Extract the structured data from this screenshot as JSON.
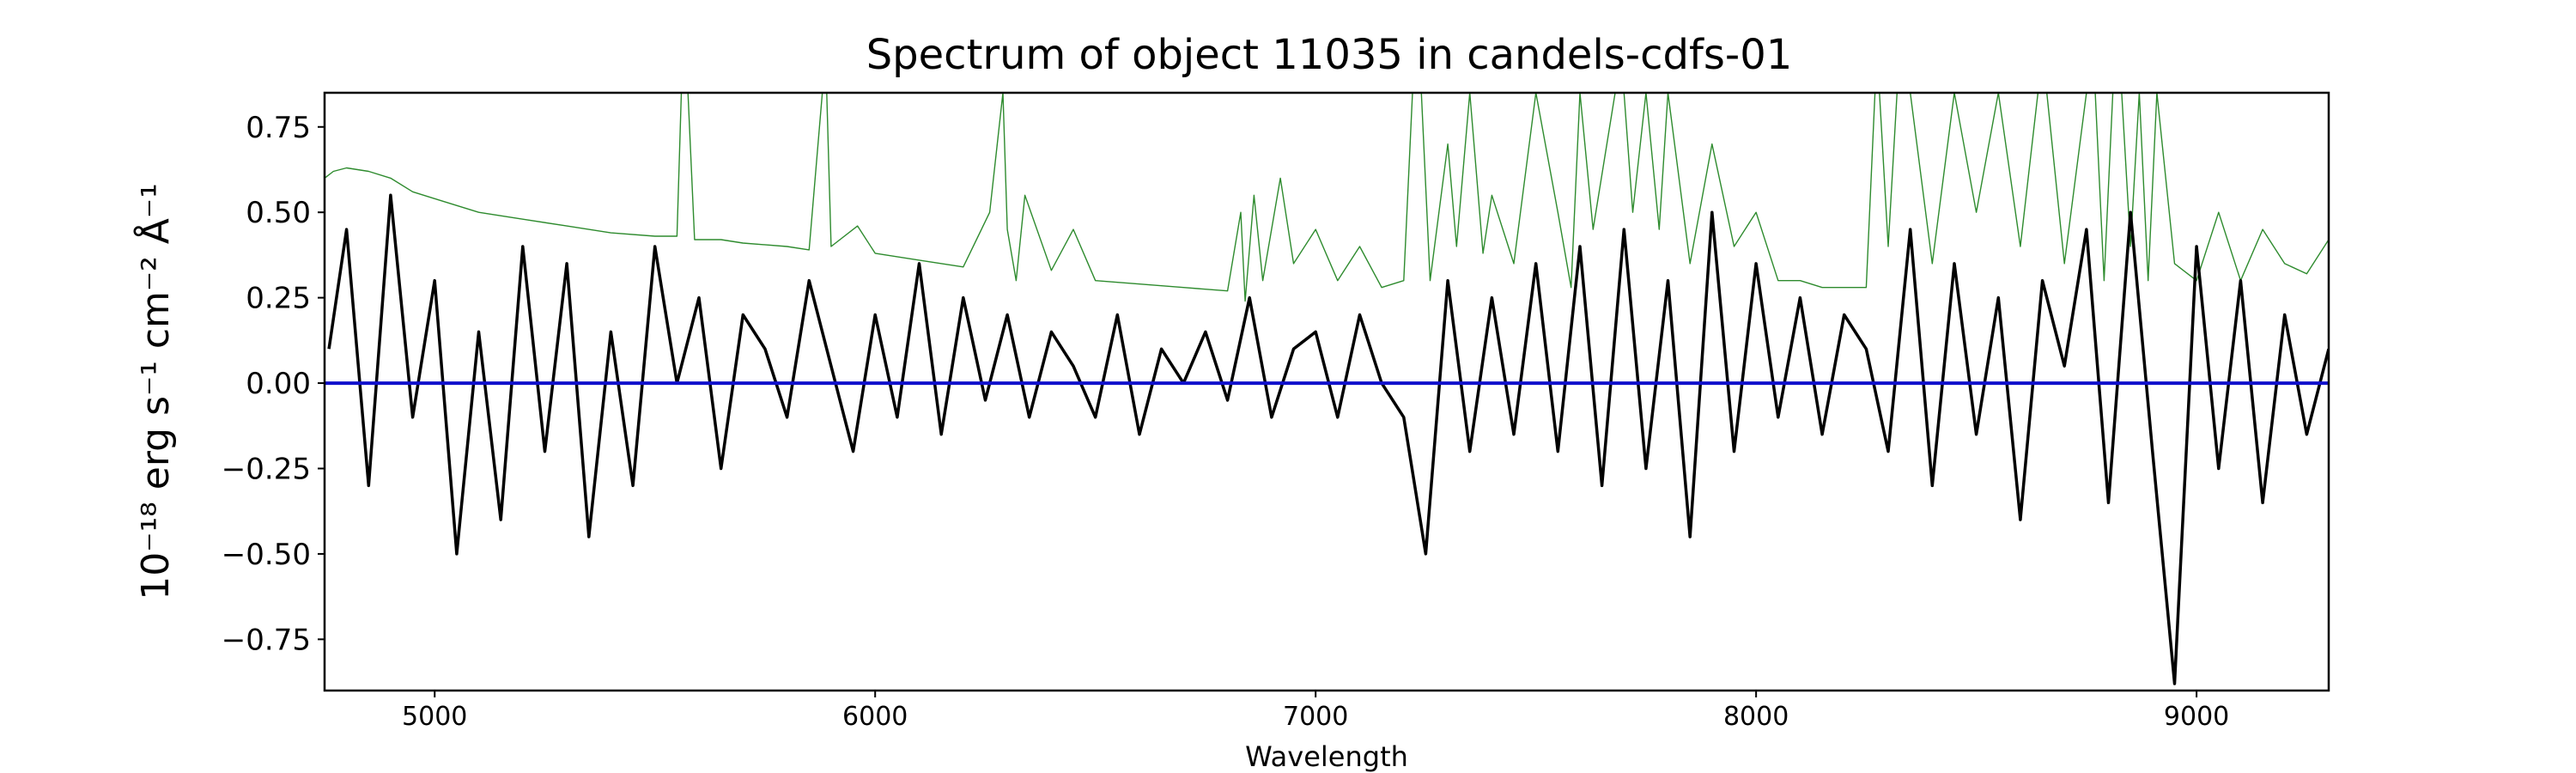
{
  "chart_data": {
    "type": "line",
    "title": "Spectrum of object 11035 in candels-cdfs-01",
    "xlabel": "Wavelength",
    "ylabel": "10⁻¹⁸ erg s⁻¹ cm⁻² Å⁻¹",
    "xlim": [
      4750,
      9300
    ],
    "ylim": [
      -0.9,
      0.85
    ],
    "xticks": [
      5000,
      6000,
      7000,
      8000,
      9000
    ],
    "yticks": [
      0.75,
      0.5,
      0.25,
      0.0,
      -0.25,
      -0.5,
      -0.75
    ],
    "ytick_labels": [
      "0.75",
      "0.50",
      "0.25",
      "0.00",
      "−0.25",
      "−0.50",
      "−0.75"
    ],
    "grid": false,
    "legend": "none",
    "series": [
      {
        "color": "#000000",
        "x": [
          4760,
          4800,
          4850,
          4900,
          4950,
          5000,
          5050,
          5100,
          5150,
          5200,
          5250,
          5300,
          5350,
          5400,
          5450,
          5500,
          5550,
          5600,
          5650,
          5700,
          5750,
          5800,
          5850,
          5900,
          5950,
          6000,
          6050,
          6100,
          6150,
          6200,
          6250,
          6300,
          6350,
          6400,
          6450,
          6500,
          6550,
          6600,
          6650,
          6700,
          6750,
          6800,
          6850,
          6900,
          6950,
          7000,
          7050,
          7100,
          7150,
          7200,
          7250,
          7300,
          7350,
          7400,
          7450,
          7500,
          7550,
          7600,
          7650,
          7700,
          7750,
          7800,
          7850,
          7900,
          7950,
          8000,
          8050,
          8100,
          8150,
          8200,
          8250,
          8300,
          8350,
          8400,
          8450,
          8500,
          8550,
          8600,
          8650,
          8700,
          8750,
          8800,
          8850,
          8900,
          8950,
          9000,
          9050,
          9100,
          9150,
          9200,
          9250,
          9300
        ],
        "y": [
          0.1,
          0.45,
          -0.3,
          0.55,
          -0.1,
          0.3,
          -0.5,
          0.15,
          -0.4,
          0.4,
          -0.2,
          0.35,
          -0.45,
          0.15,
          -0.3,
          0.4,
          0.0,
          0.25,
          -0.25,
          0.2,
          0.1,
          -0.1,
          0.3,
          0.05,
          -0.2,
          0.2,
          -0.1,
          0.35,
          -0.15,
          0.25,
          -0.05,
          0.2,
          -0.1,
          0.15,
          0.05,
          -0.1,
          0.2,
          -0.15,
          0.1,
          0.0,
          0.15,
          -0.05,
          0.25,
          -0.1,
          0.1,
          0.15,
          -0.1,
          0.2,
          0.0,
          -0.1,
          -0.5,
          0.3,
          -0.2,
          0.25,
          -0.15,
          0.35,
          -0.2,
          0.4,
          -0.3,
          0.45,
          -0.25,
          0.3,
          -0.45,
          0.5,
          -0.2,
          0.35,
          -0.1,
          0.25,
          -0.15,
          0.2,
          0.1,
          -0.2,
          0.45,
          -0.3,
          0.35,
          -0.15,
          0.25,
          -0.4,
          0.3,
          0.05,
          0.45,
          -0.35,
          0.5,
          -0.2,
          -0.88,
          0.4,
          -0.25,
          0.3,
          -0.35,
          0.2,
          -0.15,
          0.1
        ]
      },
      {
        "color": "#2e8b2e",
        "x": [
          4750,
          4770,
          4800,
          4850,
          4900,
          4950,
          5000,
          5100,
          5200,
          5300,
          5400,
          5500,
          5550,
          5560,
          5575,
          5590,
          5650,
          5700,
          5800,
          5850,
          5880,
          5890,
          5900,
          5960,
          6000,
          6100,
          6200,
          6260,
          6290,
          6300,
          6320,
          6340,
          6400,
          6450,
          6500,
          6600,
          6700,
          6800,
          6830,
          6840,
          6860,
          6880,
          6920,
          6950,
          7000,
          7050,
          7100,
          7150,
          7200,
          7220,
          7240,
          7260,
          7300,
          7320,
          7350,
          7380,
          7400,
          7450,
          7500,
          7550,
          7580,
          7600,
          7630,
          7680,
          7700,
          7720,
          7750,
          7780,
          7800,
          7850,
          7900,
          7950,
          8000,
          8050,
          8100,
          8150,
          8200,
          8250,
          8270,
          8280,
          8300,
          8320,
          8350,
          8400,
          8450,
          8500,
          8550,
          8600,
          8640,
          8660,
          8700,
          8750,
          8770,
          8790,
          8810,
          8830,
          8850,
          8870,
          8890,
          8910,
          8950,
          9000,
          9050,
          9100,
          9150,
          9200,
          9250,
          9300
        ],
        "y": [
          0.6,
          0.62,
          0.63,
          0.62,
          0.6,
          0.56,
          0.54,
          0.5,
          0.48,
          0.46,
          0.44,
          0.43,
          0.43,
          0.85,
          0.85,
          0.42,
          0.42,
          0.41,
          0.4,
          0.39,
          0.85,
          0.85,
          0.4,
          0.46,
          0.38,
          0.36,
          0.34,
          0.5,
          0.85,
          0.45,
          0.3,
          0.55,
          0.33,
          0.45,
          0.3,
          0.29,
          0.28,
          0.27,
          0.5,
          0.24,
          0.55,
          0.3,
          0.6,
          0.35,
          0.45,
          0.3,
          0.4,
          0.28,
          0.3,
          0.85,
          0.85,
          0.3,
          0.7,
          0.4,
          0.85,
          0.38,
          0.55,
          0.35,
          0.85,
          0.5,
          0.28,
          0.85,
          0.45,
          0.85,
          0.85,
          0.5,
          0.85,
          0.45,
          0.85,
          0.35,
          0.7,
          0.4,
          0.5,
          0.3,
          0.3,
          0.28,
          0.28,
          0.28,
          0.85,
          0.85,
          0.4,
          0.85,
          0.85,
          0.35,
          0.85,
          0.5,
          0.85,
          0.4,
          0.85,
          0.85,
          0.35,
          0.85,
          0.85,
          0.3,
          0.85,
          0.85,
          0.4,
          0.85,
          0.3,
          0.85,
          0.35,
          0.3,
          0.5,
          0.3,
          0.45,
          0.35,
          0.32,
          0.42
        ]
      },
      {
        "color": "#1010cc",
        "x": [
          4750,
          9300
        ],
        "y": [
          0.0,
          0.0
        ]
      }
    ]
  }
}
